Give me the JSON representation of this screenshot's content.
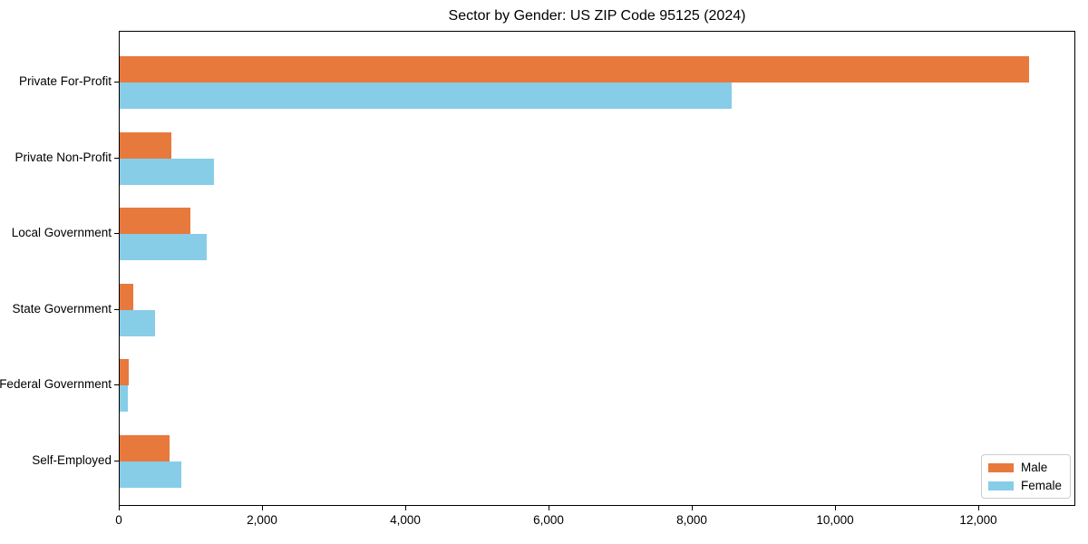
{
  "title": "Sector by Gender: US ZIP Code 95125 (2024)",
  "chart_data": {
    "type": "bar",
    "orientation": "horizontal",
    "title": "Sector by Gender: US ZIP Code 95125 (2024)",
    "xlabel": "",
    "ylabel": "",
    "grid": false,
    "categories": [
      "Private For-Profit",
      "Private Non-Profit",
      "Local Government",
      "State Government",
      "Federal Government",
      "Self-Employed"
    ],
    "series": [
      {
        "name": "Male",
        "color": "#E8793C",
        "values": [
          12700,
          725,
          990,
          185,
          130,
          690
        ]
      },
      {
        "name": "Female",
        "color": "#87CDE8",
        "values": [
          8550,
          1320,
          1220,
          495,
          120,
          860
        ]
      }
    ],
    "xlim": [
      0,
      13354
    ],
    "xticks": {
      "values": [
        0,
        2000,
        4000,
        6000,
        8000,
        10000,
        12000
      ],
      "labels": [
        "0",
        "2,000",
        "4,000",
        "6,000",
        "8,000",
        "10,000",
        "12,000"
      ]
    },
    "legend": {
      "position": "lower right",
      "entries": [
        "Male",
        "Female"
      ]
    },
    "axis_color": "#000000"
  }
}
